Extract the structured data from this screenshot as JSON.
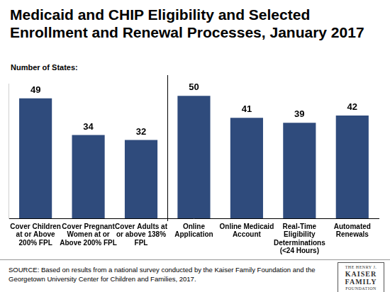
{
  "chart_data": {
    "type": "bar",
    "title": "Medicaid and CHIP Eligibility and Selected Enrollment and Renewal Processes, January 2017",
    "y_label": "Number of States:",
    "categories": [
      "Cover Children at or Above 200% FPL",
      "Cover Pregnant Women at or Above 200% FPL",
      "Cover Adults at or above 138% FPL",
      "Online Application",
      "Online Medicaid Account",
      "Real-Time Eligibility Determinations (<24 Hours)",
      "Automated Renewals"
    ],
    "values": [
      49,
      34,
      32,
      50,
      41,
      39,
      42
    ],
    "color": "#2f4b7c",
    "ylim": [
      0,
      55
    ],
    "grid": false,
    "tick_labels": "x",
    "data_labels": true,
    "source": "SOURCE: Based on results from a national survey conducted by the Kaiser Family Foundation and the Georgetown University Center for Children and Families, 2017.",
    "logo": [
      "THE HENRY J.",
      "KAISER",
      "FAMILY",
      "FOUNDATION"
    ]
  }
}
